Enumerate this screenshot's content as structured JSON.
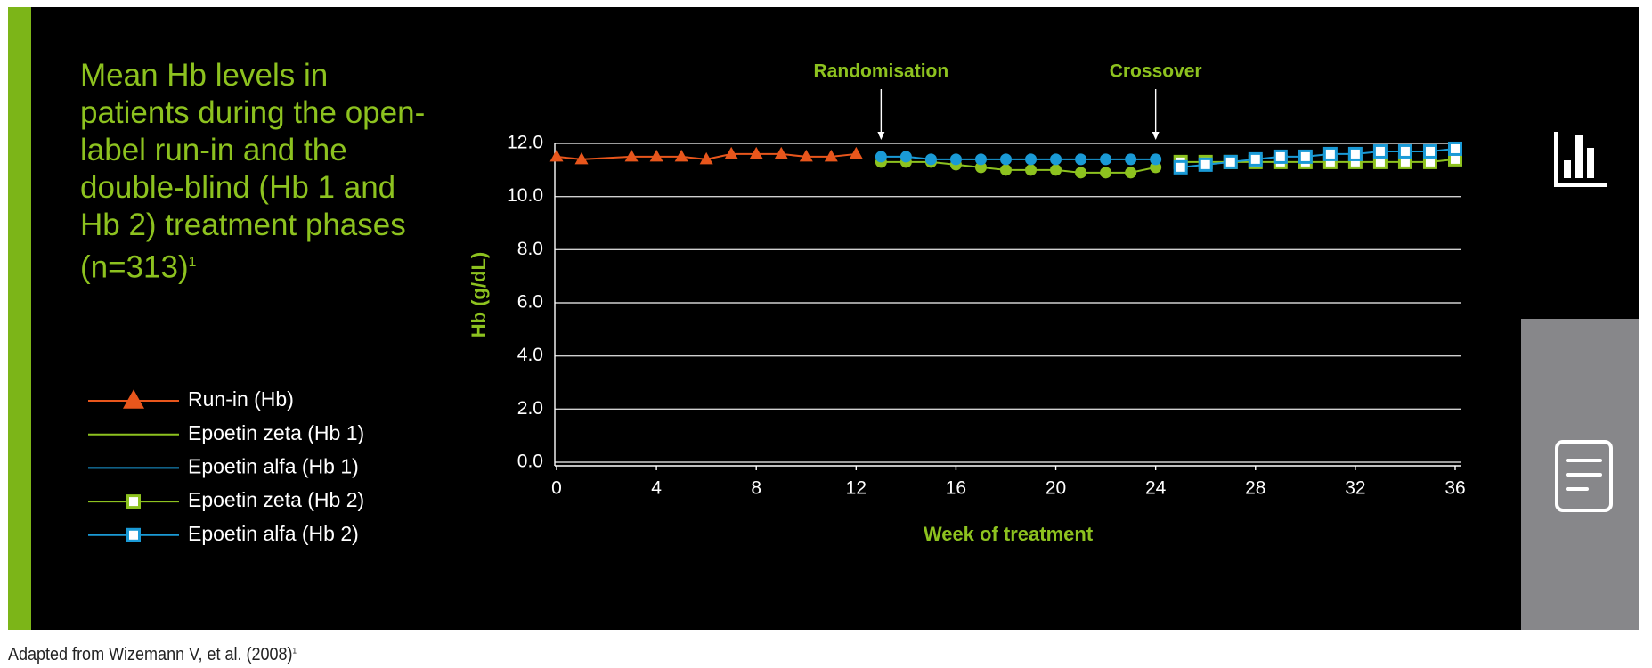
{
  "chart_data": {
    "type": "line",
    "title": "Mean Hb levels in patients during the open-label run-in and the double-blind (Hb 1 and Hb 2) treatment phases (n=313)",
    "title_sup": "1",
    "xlabel": "Week of treatment",
    "ylabel": "Hb (g/dL)",
    "xlim": [
      0,
      36
    ],
    "ylim": [
      0,
      12
    ],
    "xticks": [
      0,
      4,
      8,
      12,
      16,
      20,
      24,
      28,
      32,
      36
    ],
    "yticks": [
      {
        "value": 0,
        "label": "0.0"
      },
      {
        "value": 2,
        "label": "2.0"
      },
      {
        "value": 4,
        "label": "4.0"
      },
      {
        "value": 6,
        "label": "6.0"
      },
      {
        "value": 8,
        "label": "8.0"
      },
      {
        "value": 10,
        "label": "10.0"
      },
      {
        "value": 12,
        "label": "12.0"
      }
    ],
    "grid": true,
    "annotations": [
      {
        "text": "Randomisation",
        "x": 13
      },
      {
        "text": "Crossover",
        "x": 24
      }
    ],
    "series": [
      {
        "name": "Run-in (Hb)",
        "color": "#e8561c",
        "marker": "triangle",
        "x": [
          0,
          1,
          3,
          4,
          5,
          6,
          7,
          8,
          9,
          10,
          11,
          12
        ],
        "values": [
          11.5,
          11.4,
          11.5,
          11.5,
          11.5,
          11.4,
          11.6,
          11.6,
          11.6,
          11.5,
          11.5,
          11.6
        ]
      },
      {
        "name": "Epoetin zeta (Hb 1)",
        "color": "#8dc21f",
        "marker": "circle",
        "x": [
          13,
          14,
          15,
          16,
          17,
          18,
          19,
          20,
          21,
          22,
          23,
          24
        ],
        "values": [
          11.3,
          11.3,
          11.3,
          11.2,
          11.1,
          11.0,
          11.0,
          11.0,
          10.9,
          10.9,
          10.9,
          11.1
        ]
      },
      {
        "name": "Epoetin alfa (Hb 1)",
        "color": "#1a9ad6",
        "marker": "circle",
        "x": [
          13,
          14,
          15,
          16,
          17,
          18,
          19,
          20,
          21,
          22,
          23,
          24
        ],
        "values": [
          11.5,
          11.5,
          11.4,
          11.4,
          11.4,
          11.4,
          11.4,
          11.4,
          11.4,
          11.4,
          11.4,
          11.4
        ]
      },
      {
        "name": "Epoetin zeta (Hb 2)",
        "color": "#8dc21f",
        "marker": "square",
        "x": [
          25,
          26,
          27,
          28,
          29,
          30,
          31,
          32,
          33,
          34,
          35,
          36
        ],
        "values": [
          11.3,
          11.3,
          11.3,
          11.3,
          11.3,
          11.3,
          11.3,
          11.3,
          11.3,
          11.3,
          11.3,
          11.4
        ]
      },
      {
        "name": "Epoetin alfa (Hb 2)",
        "color": "#1a9ad6",
        "marker": "square",
        "x": [
          25,
          26,
          27,
          28,
          29,
          30,
          31,
          32,
          33,
          34,
          35,
          36
        ],
        "values": [
          11.1,
          11.2,
          11.3,
          11.4,
          11.5,
          11.5,
          11.6,
          11.6,
          11.7,
          11.7,
          11.7,
          11.8
        ]
      }
    ],
    "footnote": "Adapted from Wizemann V, et al. (2008)",
    "footnote_sup": "1"
  }
}
